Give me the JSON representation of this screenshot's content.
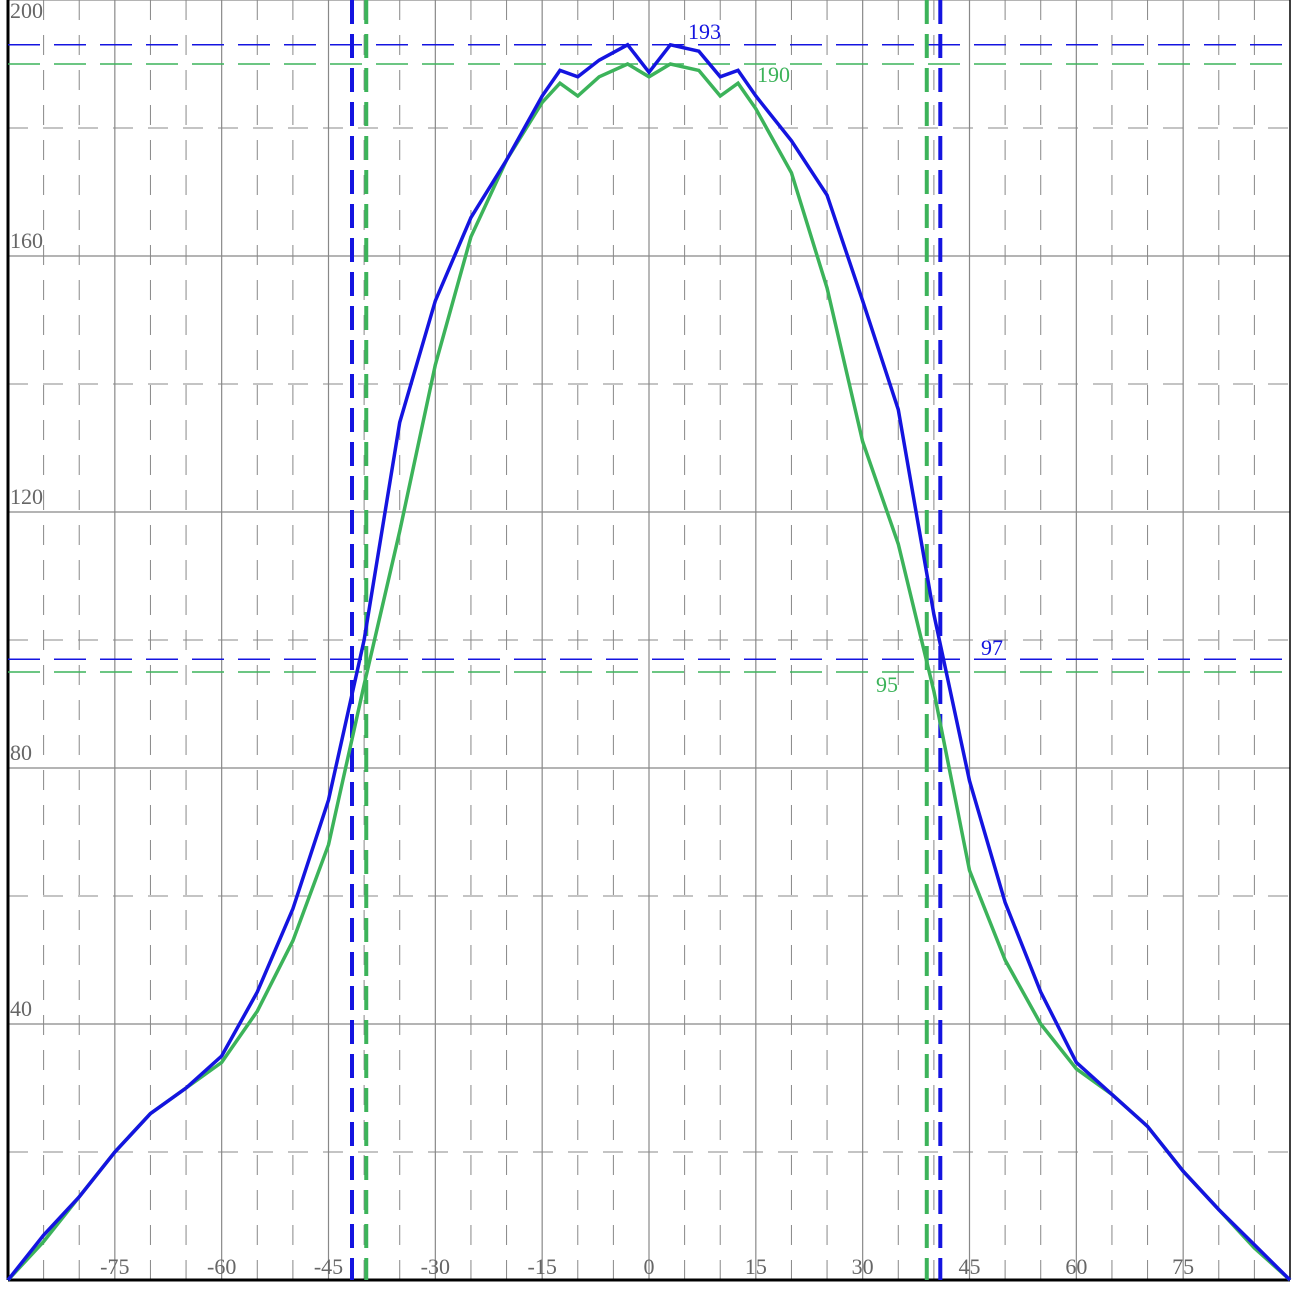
{
  "chart_data": {
    "type": "line",
    "x": [
      -90,
      -85,
      -80,
      -75,
      -70,
      -65,
      -60,
      -55,
      -50,
      -45,
      -40,
      -35,
      -30,
      -25,
      -20,
      -15,
      -12.5,
      -10,
      -7,
      -3,
      0,
      3,
      7,
      10,
      12.5,
      15,
      20,
      25,
      30,
      35,
      40,
      45,
      50,
      55,
      60,
      65,
      70,
      75,
      80,
      85,
      90
    ],
    "series": [
      {
        "color": "#3cb35a",
        "values": [
          0,
          6,
          13,
          20,
          26,
          30,
          34,
          42,
          53,
          68,
          93,
          117,
          143,
          163,
          175,
          184,
          187,
          185,
          188,
          190,
          188,
          190,
          189,
          185,
          187,
          183,
          173,
          155,
          131,
          115,
          92,
          64,
          50,
          40,
          33,
          29,
          24,
          17,
          11,
          5,
          0
        ]
      },
      {
        "color": "#1414e0",
        "values": [
          0,
          7,
          13,
          20,
          26,
          30,
          35,
          45,
          58,
          75,
          100,
          134,
          153,
          166,
          175,
          185,
          189,
          188,
          190.6,
          193,
          188.7,
          193,
          192,
          188,
          189,
          185,
          178,
          169.5,
          153,
          136,
          104,
          78,
          59,
          45,
          34,
          29,
          24,
          17,
          11,
          5.5,
          0
        ]
      }
    ],
    "hlines": [
      {
        "value": 193,
        "color": "#1414e0"
      },
      {
        "value": 190,
        "color": "#3cb35a"
      },
      {
        "value": 97,
        "color": "#1414e0"
      },
      {
        "value": 95,
        "color": "#3cb35a"
      }
    ],
    "vlines": [
      {
        "value": -41.7,
        "color": "#1414e0"
      },
      {
        "value": 40.9,
        "color": "#1414e0"
      },
      {
        "value": -39.7,
        "color": "#3cb35a"
      },
      {
        "value": 39,
        "color": "#3cb35a"
      }
    ],
    "xlim": [
      -90,
      90
    ],
    "ylim": [
      0,
      200
    ],
    "xticks": [
      -75,
      -60,
      -45,
      -30,
      -15,
      0,
      15,
      30,
      45,
      60,
      75
    ],
    "yticks": [
      40,
      80,
      120,
      160,
      200
    ],
    "xminor": [
      -85,
      -80,
      -70,
      -65,
      -55,
      -50,
      -40,
      -35,
      -25,
      -20,
      -10,
      -5,
      5,
      10,
      20,
      25,
      35,
      40,
      50,
      55,
      65,
      70,
      80,
      85
    ],
    "yminor": [
      20,
      60,
      100,
      140,
      180
    ],
    "grid": true
  }
}
